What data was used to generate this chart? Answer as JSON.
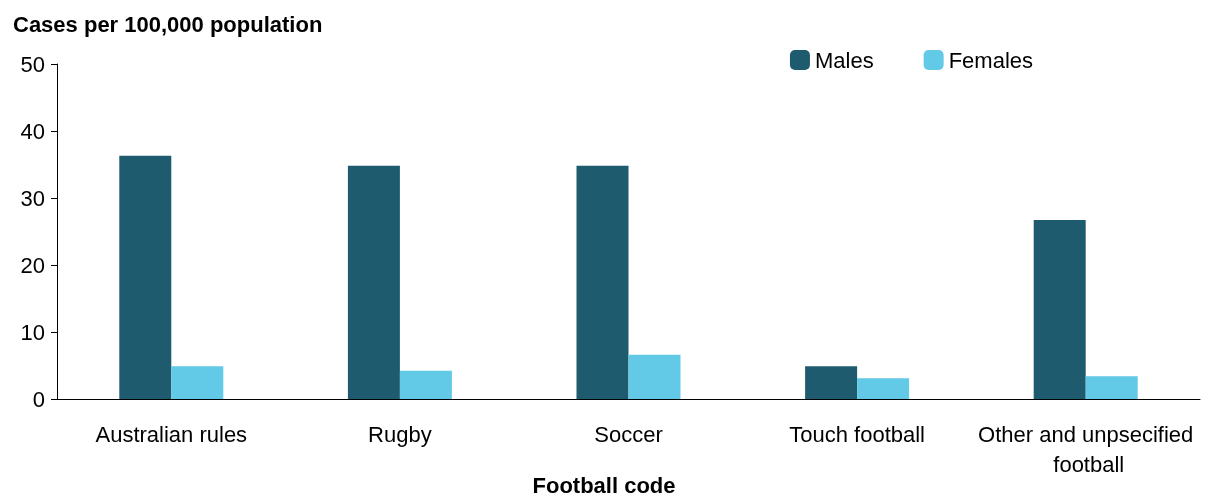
{
  "chart_data": {
    "type": "bar",
    "ylabel": "Cases per 100,000 population",
    "xlabel": "Football code",
    "categories": [
      "Australian rules",
      "Rugby",
      "Soccer",
      "Touch football",
      "Other and unpsecified football"
    ],
    "series": [
      {
        "name": "Males",
        "color": "#1f5b6f",
        "values": [
          36.3,
          34.8,
          34.8,
          4.9,
          26.7
        ]
      },
      {
        "name": "Females",
        "color": "#62c9e6",
        "values": [
          4.9,
          4.2,
          6.6,
          3.1,
          3.4
        ]
      }
    ],
    "ylim": [
      0,
      50
    ],
    "yticks": [
      0,
      10,
      20,
      30,
      40,
      50
    ],
    "grid": false,
    "legend": "top right"
  }
}
